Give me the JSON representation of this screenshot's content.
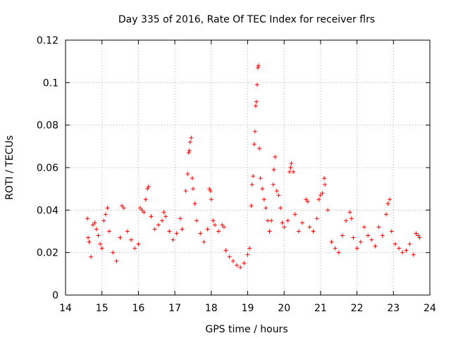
{
  "chart_data": {
    "type": "scatter",
    "title": "Day 335 of 2016, Rate Of TEC Index for receiver flrs",
    "xlabel": "GPS time / hours",
    "ylabel": "ROTI / TECUs",
    "xlim": [
      14,
      24
    ],
    "ylim": [
      0,
      0.12
    ],
    "xticks": [
      "14",
      "15",
      "16",
      "17",
      "18",
      "19",
      "20",
      "21",
      "22",
      "23",
      "24"
    ],
    "yticks": [
      "0",
      "0.02",
      "0.04",
      "0.06",
      "0.08",
      "0.1",
      "0.12"
    ],
    "grid": true,
    "marker": "+",
    "series": [
      {
        "name": "flrs",
        "color": "#ff0000",
        "points": [
          [
            14.6,
            0.036
          ],
          [
            14.62,
            0.027
          ],
          [
            14.65,
            0.025
          ],
          [
            14.7,
            0.018
          ],
          [
            14.75,
            0.033
          ],
          [
            14.8,
            0.034
          ],
          [
            14.85,
            0.031
          ],
          [
            14.9,
            0.028
          ],
          [
            14.95,
            0.024
          ],
          [
            15.0,
            0.022
          ],
          [
            15.05,
            0.035
          ],
          [
            15.1,
            0.038
          ],
          [
            15.15,
            0.041
          ],
          [
            15.2,
            0.03
          ],
          [
            15.3,
            0.02
          ],
          [
            15.4,
            0.016
          ],
          [
            15.5,
            0.027
          ],
          [
            15.55,
            0.042
          ],
          [
            15.6,
            0.041
          ],
          [
            15.7,
            0.03
          ],
          [
            15.8,
            0.026
          ],
          [
            15.9,
            0.022
          ],
          [
            16.0,
            0.024
          ],
          [
            16.05,
            0.041
          ],
          [
            16.1,
            0.04
          ],
          [
            16.15,
            0.039
          ],
          [
            16.2,
            0.045
          ],
          [
            16.25,
            0.05
          ],
          [
            16.28,
            0.051
          ],
          [
            16.35,
            0.037
          ],
          [
            16.45,
            0.031
          ],
          [
            16.55,
            0.033
          ],
          [
            16.65,
            0.035
          ],
          [
            16.7,
            0.039
          ],
          [
            16.75,
            0.037
          ],
          [
            16.85,
            0.03
          ],
          [
            16.95,
            0.026
          ],
          [
            17.05,
            0.029
          ],
          [
            17.15,
            0.036
          ],
          [
            17.2,
            0.031
          ],
          [
            17.3,
            0.049
          ],
          [
            17.35,
            0.057
          ],
          [
            17.38,
            0.067
          ],
          [
            17.4,
            0.068
          ],
          [
            17.42,
            0.072
          ],
          [
            17.45,
            0.074
          ],
          [
            17.48,
            0.055
          ],
          [
            17.5,
            0.05
          ],
          [
            17.55,
            0.043
          ],
          [
            17.6,
            0.035
          ],
          [
            17.7,
            0.029
          ],
          [
            17.8,
            0.025
          ],
          [
            17.9,
            0.031
          ],
          [
            17.95,
            0.05
          ],
          [
            17.98,
            0.049
          ],
          [
            18.0,
            0.045
          ],
          [
            18.05,
            0.035
          ],
          [
            18.1,
            0.033
          ],
          [
            18.2,
            0.03
          ],
          [
            18.3,
            0.033
          ],
          [
            18.35,
            0.032
          ],
          [
            18.4,
            0.021
          ],
          [
            18.5,
            0.018
          ],
          [
            18.6,
            0.016
          ],
          [
            18.7,
            0.014
          ],
          [
            18.8,
            0.013
          ],
          [
            18.9,
            0.015
          ],
          [
            19.0,
            0.019
          ],
          [
            19.05,
            0.022
          ],
          [
            19.1,
            0.042
          ],
          [
            19.12,
            0.052
          ],
          [
            19.15,
            0.056
          ],
          [
            19.18,
            0.071
          ],
          [
            19.2,
            0.077
          ],
          [
            19.22,
            0.089
          ],
          [
            19.24,
            0.091
          ],
          [
            19.26,
            0.099
          ],
          [
            19.28,
            0.107
          ],
          [
            19.3,
            0.108
          ],
          [
            19.32,
            0.069
          ],
          [
            19.35,
            0.055
          ],
          [
            19.4,
            0.05
          ],
          [
            19.45,
            0.045
          ],
          [
            19.5,
            0.041
          ],
          [
            19.55,
            0.035
          ],
          [
            19.6,
            0.03
          ],
          [
            19.65,
            0.035
          ],
          [
            19.7,
            0.052
          ],
          [
            19.72,
            0.059
          ],
          [
            19.75,
            0.065
          ],
          [
            19.8,
            0.049
          ],
          [
            19.85,
            0.047
          ],
          [
            19.9,
            0.041
          ],
          [
            19.95,
            0.034
          ],
          [
            20.0,
            0.032
          ],
          [
            20.1,
            0.035
          ],
          [
            20.15,
            0.058
          ],
          [
            20.18,
            0.06
          ],
          [
            20.2,
            0.062
          ],
          [
            20.25,
            0.058
          ],
          [
            20.3,
            0.038
          ],
          [
            20.4,
            0.03
          ],
          [
            20.5,
            0.034
          ],
          [
            20.6,
            0.045
          ],
          [
            20.65,
            0.044
          ],
          [
            20.7,
            0.032
          ],
          [
            20.8,
            0.03
          ],
          [
            20.9,
            0.036
          ],
          [
            20.95,
            0.045
          ],
          [
            21.0,
            0.047
          ],
          [
            21.05,
            0.048
          ],
          [
            21.1,
            0.055
          ],
          [
            21.12,
            0.052
          ],
          [
            21.2,
            0.04
          ],
          [
            21.3,
            0.025
          ],
          [
            21.4,
            0.022
          ],
          [
            21.5,
            0.02
          ],
          [
            21.6,
            0.028
          ],
          [
            21.7,
            0.035
          ],
          [
            21.8,
            0.039
          ],
          [
            21.85,
            0.036
          ],
          [
            21.9,
            0.027
          ],
          [
            22.0,
            0.022
          ],
          [
            22.1,
            0.025
          ],
          [
            22.2,
            0.032
          ],
          [
            22.3,
            0.028
          ],
          [
            22.4,
            0.026
          ],
          [
            22.5,
            0.023
          ],
          [
            22.6,
            0.032
          ],
          [
            22.7,
            0.028
          ],
          [
            22.8,
            0.038
          ],
          [
            22.85,
            0.043
          ],
          [
            22.9,
            0.045
          ],
          [
            22.95,
            0.03
          ],
          [
            23.05,
            0.024
          ],
          [
            23.15,
            0.022
          ],
          [
            23.25,
            0.02
          ],
          [
            23.35,
            0.021
          ],
          [
            23.45,
            0.024
          ],
          [
            23.55,
            0.019
          ],
          [
            23.62,
            0.029
          ],
          [
            23.68,
            0.028
          ],
          [
            23.72,
            0.027
          ]
        ]
      }
    ]
  }
}
